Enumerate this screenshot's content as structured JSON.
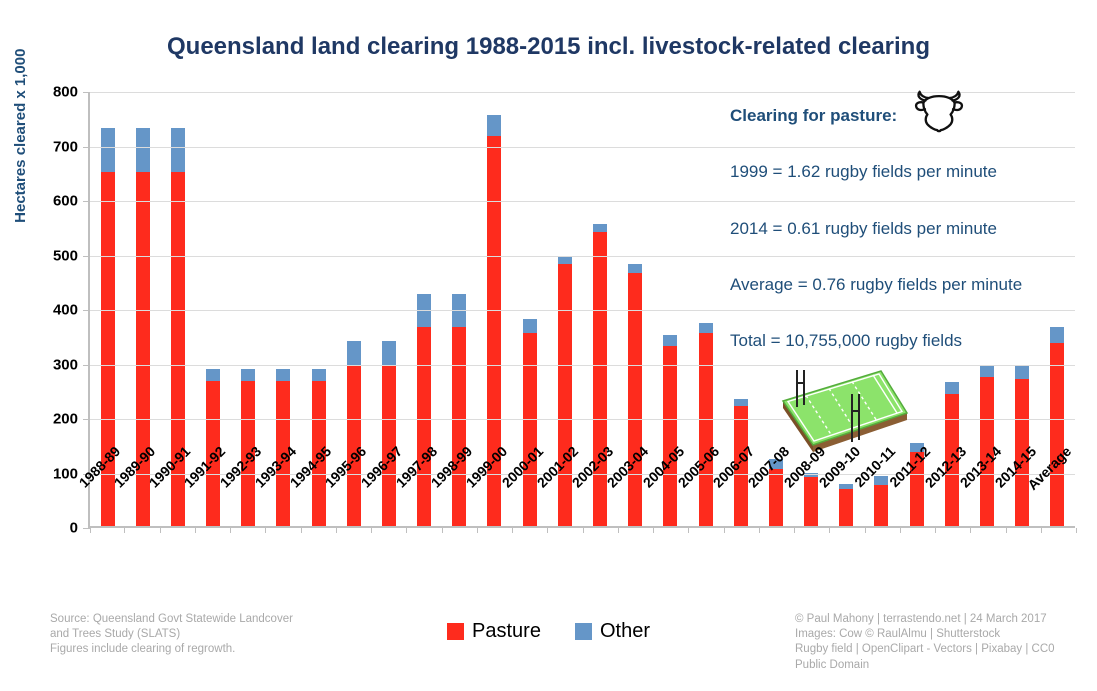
{
  "title": "Queensland land clearing 1988-2015 incl. livestock-related clearing",
  "y_axis": {
    "label": "Hectares cleared x 1,000",
    "tick_values": [
      0,
      100,
      200,
      300,
      400,
      500,
      600,
      700,
      800
    ]
  },
  "annotations": {
    "heading": "Clearing for pasture:",
    "lines": [
      "1999 = 1.62 rugby fields per minute",
      "2014 = 0.61 rugby fields per minute",
      "Average = 0.76 rugby fields per minute",
      "Total = 10,755,000 rugby fields"
    ]
  },
  "legend": [
    {
      "label": "Pasture",
      "color": "#FE2B1D"
    },
    {
      "label": "Other",
      "color": "#6596C8"
    }
  ],
  "footer_left": {
    "lines": [
      "Source: Queensland Govt Statewide Landcover",
      "and Trees Study (SLATS)",
      "Figures include clearing of regrowth."
    ]
  },
  "footer_right": {
    "lines": [
      "© Paul Mahony | terrastendo.net | 24 March 2017",
      "Images: Cow © RaulAlmu | Shutterstock",
      "Rugby field | OpenClipart - Vectors | Pixabay | CC0",
      "Public Domain"
    ]
  },
  "colors": {
    "pasture": "#FE2B1D",
    "other": "#6596C8",
    "title_navy": "#1F3864",
    "annotation_blue": "#1F4E79",
    "gridline": "#DCDCDC",
    "axis": "#BFBFBF",
    "footer_gray": "#A9A9A9"
  },
  "chart_data": {
    "type": "bar",
    "stacked": true,
    "title": "Queensland land clearing 1988-2015 incl. livestock-related clearing",
    "xlabel": "",
    "ylabel": "Hectares cleared x 1,000",
    "ylim": [
      0,
      800
    ],
    "ytick_step": 100,
    "grid": true,
    "legend_position": "bottom",
    "categories": [
      "1988-89",
      "1989-90",
      "1990-91",
      "1991-92",
      "1992-93",
      "1993-94",
      "1994-95",
      "1995-96",
      "1996-97",
      "1997-98",
      "1998-99",
      "1999-00",
      "2000-01",
      "2001-02",
      "2002-03",
      "2003-04",
      "2004-05",
      "2005-06",
      "2006-07",
      "2007-08",
      "2008-09",
      "2009-10",
      "2010-11",
      "2011-12",
      "2012-13",
      "2013-14",
      "2014-15",
      "Average"
    ],
    "series": [
      {
        "name": "Pasture",
        "color": "#FE2B1D",
        "values": [
          650,
          650,
          650,
          267,
          267,
          267,
          267,
          295,
          295,
          365,
          365,
          715,
          355,
          480,
          540,
          465,
          330,
          355,
          220,
          105,
          90,
          68,
          75,
          135,
          242,
          273,
          270,
          335
        ]
      },
      {
        "name": "Other",
        "color": "#6596C8",
        "values": [
          80,
          80,
          80,
          22,
          22,
          22,
          22,
          45,
          45,
          60,
          60,
          40,
          25,
          16,
          15,
          15,
          20,
          18,
          13,
          18,
          8,
          10,
          17,
          17,
          23,
          22,
          25,
          30
        ]
      }
    ]
  }
}
